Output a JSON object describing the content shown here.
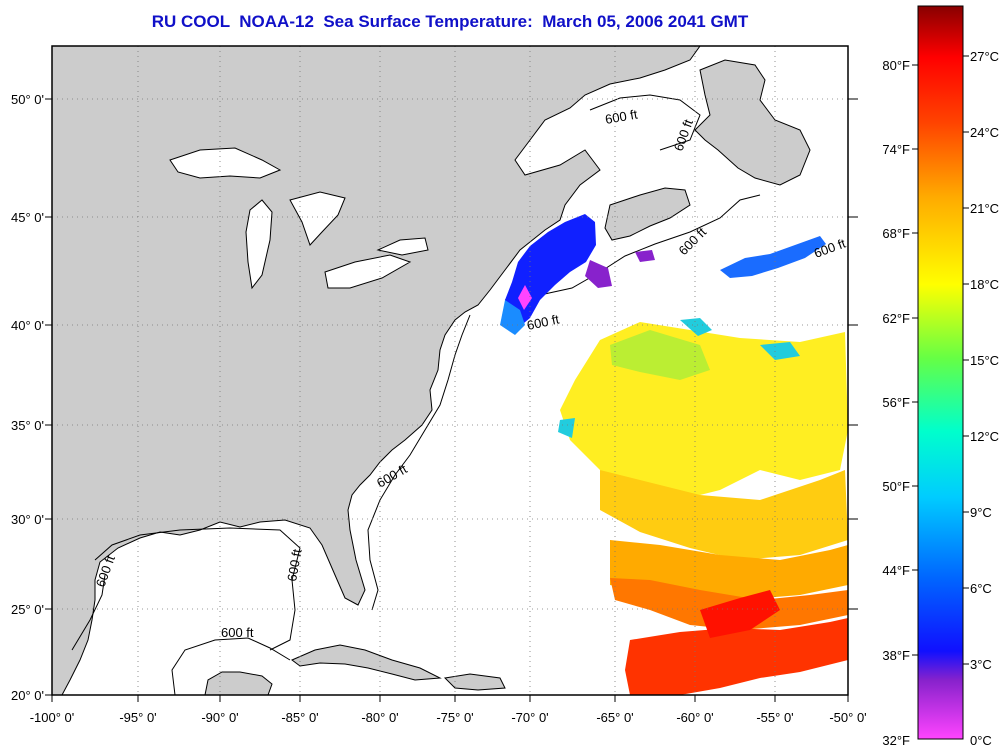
{
  "title": "RU COOL  NOAA-12  Sea Surface Temperature:  March 05, 2006 2041 GMT",
  "map": {
    "lon_labels": [
      "-100° 0'",
      "-95° 0'",
      "-90° 0'",
      "-85° 0'",
      "-80° 0'",
      "-75° 0'",
      "-70° 0'",
      "-65° 0'",
      "-60° 0'",
      "-55° 0'",
      "-50° 0'"
    ],
    "lat_labels": [
      "50° 0'",
      "45° 0'",
      "40° 0'",
      "35° 0'",
      "30° 0'",
      "25° 0'",
      "20° 0'"
    ],
    "contour_labels": [
      "600 ft",
      "600 ft",
      "600 ft",
      "600 ft",
      "600 ft",
      "600 ft",
      "600 ft",
      "600 ft",
      "600 ft"
    ],
    "land_color": "#cccccc",
    "ocean_color": "#ffffff"
  },
  "colorbar": {
    "fahrenheit_labels": [
      "80°F",
      "74°F",
      "68°F",
      "62°F",
      "56°F",
      "50°F",
      "44°F",
      "38°F",
      "32°F"
    ],
    "celsius_labels": [
      "27°C",
      "24°C",
      "21°C",
      "18°C",
      "15°C",
      "12°C",
      "9°C",
      "6°C",
      "3°C",
      "0°C"
    ],
    "colors": [
      "#ff44ff",
      "#8822cc",
      "#0000ff",
      "#00aaff",
      "#00ffff",
      "#00ff88",
      "#88ff00",
      "#ffff00",
      "#ffaa00",
      "#ff6600",
      "#ff0000",
      "#aa0000",
      "#880000"
    ]
  }
}
